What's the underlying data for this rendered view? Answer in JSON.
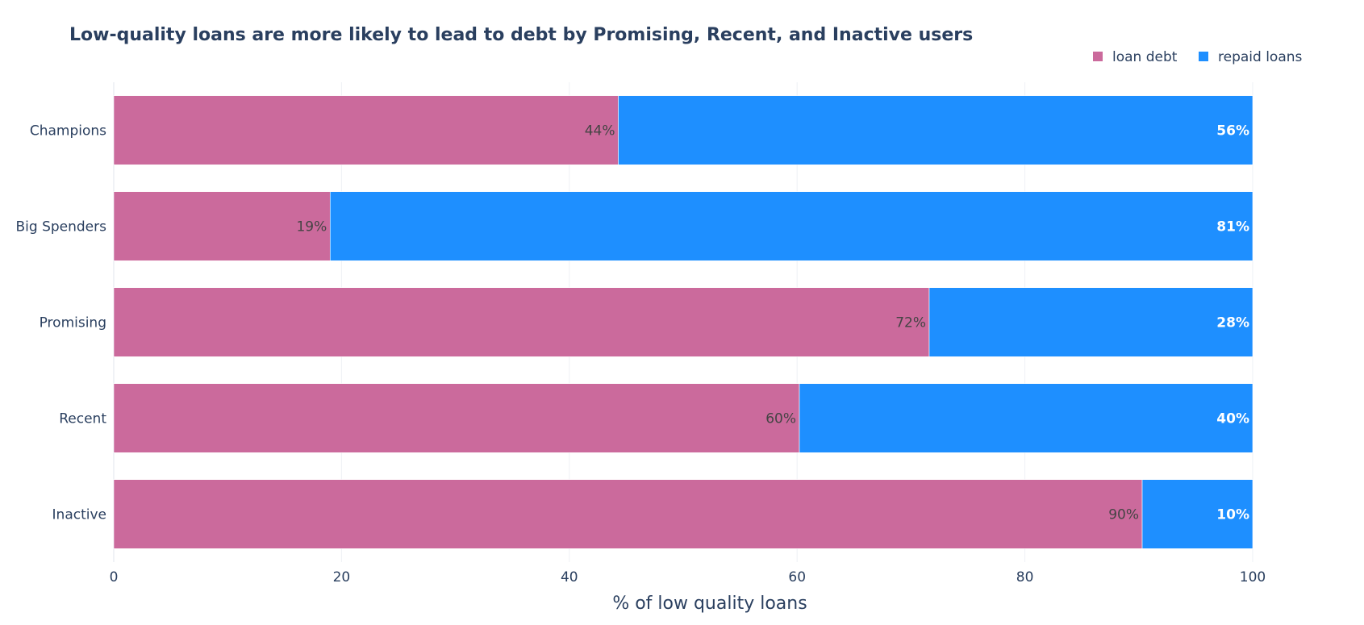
{
  "chart_data": {
    "type": "bar",
    "orientation": "horizontal",
    "stacked": true,
    "title": "Low-quality loans are more likely to lead to debt by Promising, Recent, and Inactive users",
    "xlabel": "% of low quality loans",
    "ylabel": "",
    "xlim": [
      0,
      100
    ],
    "xticks": [
      "0",
      "20",
      "40",
      "60",
      "80",
      "100"
    ],
    "categories": [
      "Champions",
      "Big Spenders",
      "Promising",
      "Recent",
      "Inactive"
    ],
    "series": [
      {
        "name": "loan debt",
        "color": "#cb6a9c",
        "values": [
          44.3,
          19.0,
          71.6,
          60.2,
          90.3
        ],
        "labels": [
          "44%",
          "19%",
          "72%",
          "60%",
          "90%"
        ],
        "label_color": "#444444"
      },
      {
        "name": "repaid loans",
        "color": "#1e8fff",
        "values": [
          55.7,
          81.0,
          28.4,
          39.8,
          9.7
        ],
        "labels": [
          "56%",
          "81%",
          "28%",
          "40%",
          "10%"
        ],
        "label_color": "#ffffff"
      }
    ],
    "grid": true,
    "legend_position": "top-right"
  }
}
